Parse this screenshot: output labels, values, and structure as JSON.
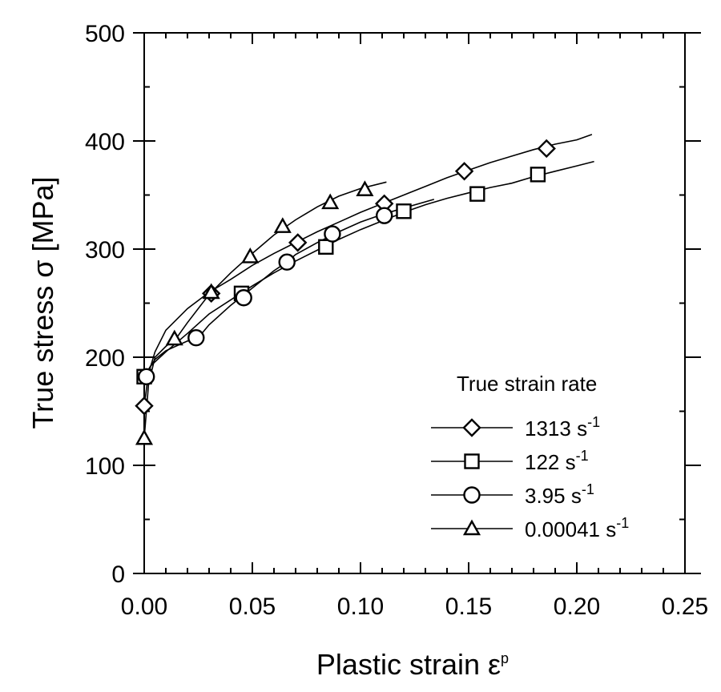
{
  "chart_data": {
    "type": "line",
    "xlabel": "Plastic strain ε",
    "xlabel_sup": "p",
    "ylabel": "True stress σ  [MPa]",
    "xlim": [
      0.0,
      0.25
    ],
    "ylim": [
      0,
      500
    ],
    "xticks": [
      0.0,
      0.05,
      0.1,
      0.15,
      0.2,
      0.25
    ],
    "xtick_labels": [
      "0.00",
      "0.05",
      "0.10",
      "0.15",
      "0.20",
      "0.25"
    ],
    "yticks": [
      0,
      100,
      200,
      300,
      400,
      500
    ],
    "ytick_labels": [
      "0",
      "100",
      "200",
      "300",
      "400",
      "500"
    ],
    "grid": false,
    "legend": {
      "title": "True strain rate",
      "placement": "bottom-right",
      "entries": [
        {
          "value": "1313 s",
          "sup": "-1",
          "marker": "diamond"
        },
        {
          "value": "122 s",
          "sup": "-1",
          "marker": "square"
        },
        {
          "value": "3.95 s",
          "sup": "-1",
          "marker": "circle"
        },
        {
          "value": "0.00041 s",
          "sup": "-1",
          "marker": "triangle"
        }
      ]
    },
    "series": [
      {
        "name": "1313 s-1",
        "marker": "diamond",
        "curve": [
          [
            0.0,
            155
          ],
          [
            0.002,
            185
          ],
          [
            0.005,
            205
          ],
          [
            0.01,
            225
          ],
          [
            0.02,
            245
          ],
          [
            0.03,
            260
          ],
          [
            0.04,
            272
          ],
          [
            0.05,
            285
          ],
          [
            0.06,
            296
          ],
          [
            0.07,
            306
          ],
          [
            0.08,
            316
          ],
          [
            0.09,
            325
          ],
          [
            0.1,
            334
          ],
          [
            0.11,
            342
          ],
          [
            0.12,
            350
          ],
          [
            0.13,
            358
          ],
          [
            0.14,
            366
          ],
          [
            0.15,
            373
          ],
          [
            0.16,
            380
          ],
          [
            0.17,
            386
          ],
          [
            0.18,
            392
          ],
          [
            0.19,
            397
          ],
          [
            0.2,
            401
          ],
          [
            0.207,
            406
          ]
        ],
        "markers": [
          [
            0.0,
            155
          ],
          [
            0.031,
            259
          ],
          [
            0.071,
            306
          ],
          [
            0.111,
            342
          ],
          [
            0.148,
            372
          ],
          [
            0.186,
            393
          ]
        ]
      },
      {
        "name": "122 s-1",
        "marker": "square",
        "curve": [
          [
            0.0,
            182
          ],
          [
            0.003,
            192
          ],
          [
            0.01,
            205
          ],
          [
            0.02,
            222
          ],
          [
            0.03,
            240
          ],
          [
            0.04,
            253
          ],
          [
            0.05,
            266
          ],
          [
            0.06,
            278
          ],
          [
            0.07,
            289
          ],
          [
            0.08,
            299
          ],
          [
            0.09,
            309
          ],
          [
            0.1,
            318
          ],
          [
            0.11,
            326
          ],
          [
            0.12,
            334
          ],
          [
            0.13,
            341
          ],
          [
            0.14,
            347
          ],
          [
            0.15,
            352
          ],
          [
            0.16,
            357
          ],
          [
            0.17,
            361
          ],
          [
            0.18,
            367
          ],
          [
            0.19,
            372
          ],
          [
            0.2,
            377
          ],
          [
            0.208,
            381
          ]
        ],
        "markers": [
          [
            0.0,
            182
          ],
          [
            0.045,
            259
          ],
          [
            0.084,
            302
          ],
          [
            0.12,
            335
          ],
          [
            0.154,
            351
          ],
          [
            0.182,
            369
          ]
        ]
      },
      {
        "name": "3.95 s-1",
        "marker": "circle",
        "curve": [
          [
            0.0,
            182
          ],
          [
            0.005,
            198
          ],
          [
            0.01,
            206
          ],
          [
            0.02,
            215
          ],
          [
            0.025,
            218
          ],
          [
            0.03,
            230
          ],
          [
            0.04,
            248
          ],
          [
            0.05,
            264
          ],
          [
            0.06,
            280
          ],
          [
            0.066,
            288
          ],
          [
            0.07,
            295
          ],
          [
            0.08,
            306
          ],
          [
            0.09,
            316
          ],
          [
            0.1,
            325
          ],
          [
            0.11,
            332
          ],
          [
            0.12,
            338
          ],
          [
            0.134,
            346
          ]
        ],
        "markers": [
          [
            0.001,
            182
          ],
          [
            0.024,
            218
          ],
          [
            0.046,
            255
          ],
          [
            0.066,
            288
          ],
          [
            0.087,
            314
          ],
          [
            0.111,
            331
          ]
        ]
      },
      {
        "name": "0.00041 s-1",
        "marker": "triangle",
        "curve": [
          [
            0.0,
            125
          ],
          [
            0.002,
            175
          ],
          [
            0.005,
            200
          ],
          [
            0.01,
            210
          ],
          [
            0.015,
            218
          ],
          [
            0.02,
            232
          ],
          [
            0.03,
            258
          ],
          [
            0.04,
            278
          ],
          [
            0.05,
            296
          ],
          [
            0.06,
            313
          ],
          [
            0.07,
            327
          ],
          [
            0.08,
            339
          ],
          [
            0.09,
            349
          ],
          [
            0.1,
            356
          ],
          [
            0.112,
            362
          ]
        ],
        "markers": [
          [
            0.0,
            125
          ],
          [
            0.014,
            217
          ],
          [
            0.031,
            260
          ],
          [
            0.049,
            293
          ],
          [
            0.064,
            321
          ],
          [
            0.086,
            343
          ],
          [
            0.102,
            355
          ]
        ]
      }
    ]
  }
}
